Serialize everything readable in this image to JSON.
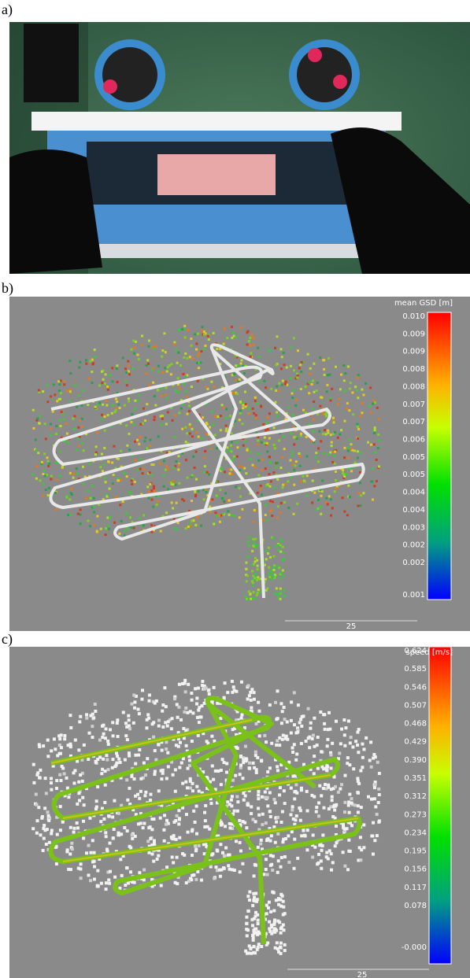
{
  "panels": [
    {
      "label": "a)"
    },
    {
      "label": "b)",
      "colorbar": {
        "title": "mean GSD [m]",
        "ticks": [
          "0.010",
          "0.009",
          "0.009",
          "0.008",
          "0.008",
          "0.007",
          "0.007",
          "0.006",
          "0.005",
          "0.005",
          "0.004",
          "0.004",
          "0.003",
          "0.002",
          "0.002",
          "0.001"
        ]
      },
      "scale_bar": "25"
    },
    {
      "label": "c)",
      "colorbar": {
        "title": "speed [m/s]",
        "ticks": [
          "0.624",
          "0.585",
          "0.546",
          "0.507",
          "0.468",
          "0.429",
          "0.390",
          "0.351",
          "0.312",
          "0.273",
          "0.234",
          "0.195",
          "0.156",
          "0.117",
          "0.078",
          "-0.000"
        ]
      },
      "scale_bar": "25"
    }
  ]
}
